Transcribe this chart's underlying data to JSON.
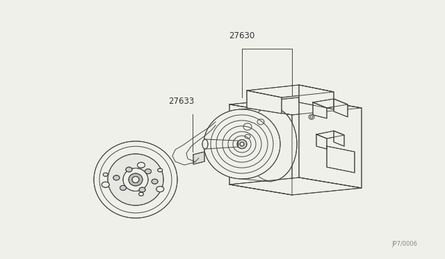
{
  "bg_color": "#f0f0eb",
  "line_color": "#444444",
  "label_27630": "27630",
  "label_27633": "27633",
  "watermark": "JP7/0006",
  "figsize": [
    6.4,
    3.72
  ],
  "dpi": 100,
  "lw": 0.7
}
